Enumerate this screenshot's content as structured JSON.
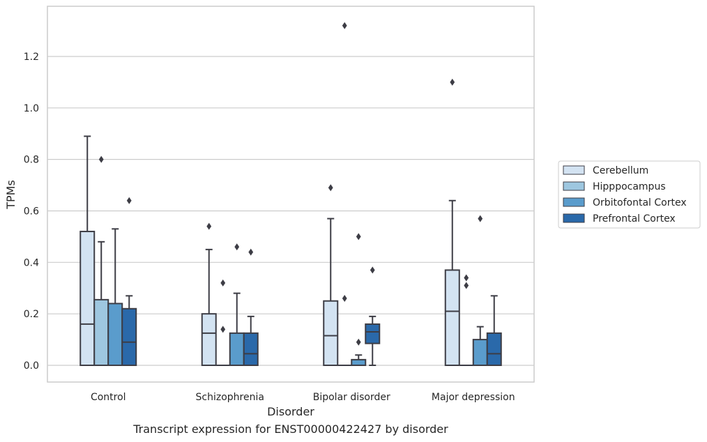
{
  "chart_data": {
    "type": "box",
    "xlabel": "Disorder",
    "ylabel": "TPMs",
    "ylim": [
      -0.065,
      1.395
    ],
    "yticks": [
      0.0,
      0.2,
      0.4,
      0.6,
      0.8,
      1.0,
      1.2
    ],
    "ytick_labels": [
      "0.0",
      "0.2",
      "0.4",
      "0.6",
      "0.8",
      "1.0",
      "1.2"
    ],
    "grid": "horizontal",
    "legend_position": "right",
    "categories": [
      "Control",
      "Schizophrenia",
      "Bipolar disorder",
      "Major depression"
    ],
    "series": [
      {
        "name": "Cerebellum",
        "color": "#d3e3f2",
        "boxes": [
          {
            "whislo": 0.0,
            "q1": 0.0,
            "med": 0.16,
            "q3": 0.52,
            "whishi": 0.89,
            "fliers": []
          },
          {
            "whislo": 0.0,
            "q1": 0.0,
            "med": 0.125,
            "q3": 0.2,
            "whishi": 0.45,
            "fliers": [
              0.54
            ]
          },
          {
            "whislo": 0.0,
            "q1": 0.0,
            "med": 0.115,
            "q3": 0.25,
            "whishi": 0.57,
            "fliers": [
              0.69
            ]
          },
          {
            "whislo": 0.0,
            "q1": 0.0,
            "med": 0.21,
            "q3": 0.37,
            "whishi": 0.64,
            "fliers": [
              1.1
            ]
          }
        ]
      },
      {
        "name": "Hipppocampus",
        "color": "#9ec7e0",
        "boxes": [
          {
            "whislo": 0.0,
            "q1": 0.0,
            "med": 0.0,
            "q3": 0.255,
            "whishi": 0.48,
            "fliers": [
              0.8
            ]
          },
          {
            "whislo": 0.0,
            "q1": 0.0,
            "med": 0.0,
            "q3": 0.0,
            "whishi": 0.0,
            "fliers": [
              0.14,
              0.32
            ]
          },
          {
            "whislo": 0.0,
            "q1": 0.0,
            "med": 0.0,
            "q3": 0.0,
            "whishi": 0.0,
            "fliers": [
              0.26,
              1.32
            ]
          },
          {
            "whislo": 0.0,
            "q1": 0.0,
            "med": 0.0,
            "q3": 0.0,
            "whishi": 0.0,
            "fliers": [
              0.31,
              0.34
            ]
          }
        ]
      },
      {
        "name": "Orbitofontal Cortex",
        "color": "#5a9ccc",
        "boxes": [
          {
            "whislo": 0.0,
            "q1": 0.0,
            "med": 0.0,
            "q3": 0.24,
            "whishi": 0.53,
            "fliers": []
          },
          {
            "whislo": 0.0,
            "q1": 0.0,
            "med": 0.0,
            "q3": 0.125,
            "whishi": 0.28,
            "fliers": [
              0.46
            ]
          },
          {
            "whislo": 0.0,
            "q1": 0.0,
            "med": 0.0,
            "q3": 0.022,
            "whishi": 0.04,
            "fliers": [
              0.09,
              0.5
            ]
          },
          {
            "whislo": 0.0,
            "q1": 0.0,
            "med": 0.0,
            "q3": 0.1,
            "whishi": 0.15,
            "fliers": [
              0.57
            ]
          }
        ]
      },
      {
        "name": "Prefrontal Cortex",
        "color": "#2a69aa",
        "boxes": [
          {
            "whislo": 0.0,
            "q1": 0.0,
            "med": 0.09,
            "q3": 0.22,
            "whishi": 0.27,
            "fliers": [
              0.64
            ]
          },
          {
            "whislo": 0.0,
            "q1": 0.0,
            "med": 0.045,
            "q3": 0.125,
            "whishi": 0.19,
            "fliers": [
              0.44
            ]
          },
          {
            "whislo": 0.0,
            "q1": 0.085,
            "med": 0.13,
            "q3": 0.16,
            "whishi": 0.19,
            "fliers": [
              0.37
            ]
          },
          {
            "whislo": 0.0,
            "q1": 0.0,
            "med": 0.045,
            "q3": 0.125,
            "whishi": 0.27,
            "fliers": []
          }
        ]
      }
    ]
  },
  "caption": "Transcript expression for ENST00000422427 by disorder",
  "style": {
    "grid_color": "#cccccc",
    "edge_color": "#3d3d45",
    "text_color": "#262626"
  }
}
